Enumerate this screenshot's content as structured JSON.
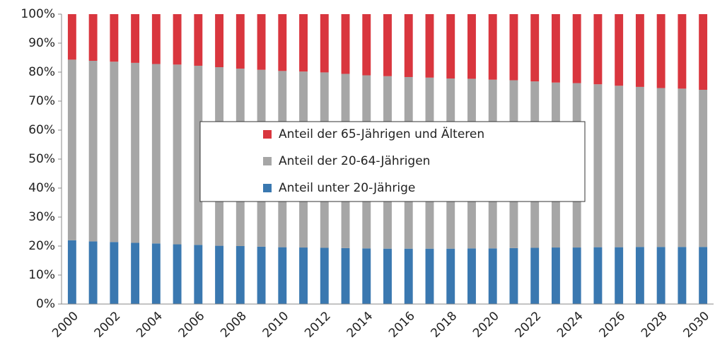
{
  "chart_data": {
    "type": "stacked_bar",
    "categories": [
      2000,
      null,
      2002,
      null,
      2004,
      null,
      2006,
      null,
      2008,
      null,
      2010,
      null,
      2012,
      null,
      2014,
      null,
      2016,
      null,
      2018,
      null,
      2020,
      null,
      2022,
      null,
      2024,
      null,
      2026,
      null,
      2028,
      null,
      2030
    ],
    "series": [
      {
        "name": "Anteil unter 20-Jährige",
        "color": "#3a78b0",
        "values": [
          22,
          21.6,
          21.4,
          21.1,
          20.9,
          20.6,
          20.4,
          20.1,
          20.0,
          19.8,
          19.6,
          19.5,
          19.4,
          19.3,
          19.2,
          19.1,
          19.1,
          19.1,
          19.1,
          19.2,
          19.2,
          19.3,
          19.4,
          19.5,
          19.5,
          19.6,
          19.6,
          19.7,
          19.7,
          19.7,
          19.7
        ]
      },
      {
        "name": "Anteil der 20-64-Jährigen",
        "color": "#a6a6a6",
        "values": [
          62.3,
          62.3,
          62.2,
          62.1,
          61.9,
          62.0,
          61.8,
          61.6,
          61.2,
          61.0,
          60.8,
          60.7,
          60.5,
          60.1,
          59.7,
          59.5,
          59.2,
          59.0,
          58.7,
          58.5,
          58.2,
          57.9,
          57.4,
          56.9,
          56.7,
          56.2,
          55.7,
          55.2,
          54.8,
          54.6,
          54.2
        ]
      },
      {
        "name": "Anteil der 65-Jährigen und Älteren",
        "color": "#d9363e",
        "values": [
          15.7,
          16.1,
          16.4,
          16.8,
          17.2,
          17.4,
          17.8,
          18.3,
          18.8,
          19.2,
          19.6,
          19.8,
          20.1,
          20.6,
          21.1,
          21.4,
          21.7,
          21.9,
          22.2,
          22.3,
          22.6,
          22.8,
          23.2,
          23.6,
          23.8,
          24.2,
          24.7,
          25.1,
          25.5,
          25.7,
          26.1
        ]
      }
    ],
    "ylim": [
      0,
      100
    ],
    "yticks": [
      {
        "value": 0,
        "label": "0%"
      },
      {
        "value": 10,
        "label": "10%"
      },
      {
        "value": 20,
        "label": "20%"
      },
      {
        "value": 30,
        "label": "30%"
      },
      {
        "value": 40,
        "label": "40%"
      },
      {
        "value": 50,
        "label": "50%"
      },
      {
        "value": 60,
        "label": "60%"
      },
      {
        "value": 70,
        "label": "70%"
      },
      {
        "value": 80,
        "label": "80%"
      },
      {
        "value": 90,
        "label": "90%"
      },
      {
        "value": 100,
        "label": "100%"
      }
    ],
    "grid": false,
    "legend": "center"
  }
}
